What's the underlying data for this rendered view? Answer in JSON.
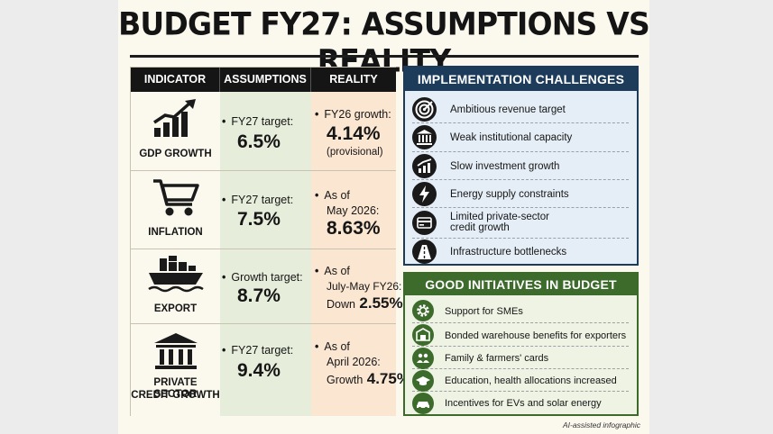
{
  "title": "BUDGET FY27: ASSUMPTIONS VS REALITY",
  "table": {
    "headers": {
      "indicator": "INDICATOR",
      "assumptions": "ASSUMPTIONS",
      "reality": "REALITY"
    },
    "rows": [
      {
        "icon": "growth-chart-icon",
        "label": "GDP GROWTH",
        "assumption_text": "FY27 target:",
        "assumption_value": "6.5%",
        "reality_text": "FY26 growth:",
        "reality_value": "4.14%",
        "reality_note": "(provisional)"
      },
      {
        "icon": "shopping-cart-icon",
        "label": "INFLATION",
        "assumption_text": "FY27 target:",
        "assumption_value": "7.5%",
        "reality_text_1": "As of",
        "reality_text_2": "May 2026:",
        "reality_value": "8.63%"
      },
      {
        "icon": "cargo-ship-icon",
        "label": "EXPORT",
        "assumption_text": "Growth target:",
        "assumption_value": "8.7%",
        "reality_text_1": "As of",
        "reality_text_2": "July-May FY26:",
        "reality_prefix": "Down",
        "reality_value": "2.55%"
      },
      {
        "icon": "bank-building-icon",
        "label_1": "PRIVATE SECTOR",
        "label_2": "CREDIT GROWTH",
        "assumption_text": "FY27 target:",
        "assumption_value": "9.4%",
        "reality_text_1": "As of",
        "reality_text_2": "April 2026:",
        "reality_prefix": "Growth",
        "reality_value": "4.75%"
      }
    ]
  },
  "challenges": {
    "heading": "IMPLEMENTATION CHALLENGES",
    "items": [
      {
        "icon": "target-icon",
        "label": "Ambitious revenue target"
      },
      {
        "icon": "institution-icon",
        "label": "Weak institutional capacity"
      },
      {
        "icon": "low-growth-chart-icon",
        "label": "Slow investment growth"
      },
      {
        "icon": "lightning-icon",
        "label": "Energy supply constraints"
      },
      {
        "icon": "credit-card-icon",
        "label_1": "Limited private-sector",
        "label_2": "credit growth"
      },
      {
        "icon": "road-icon",
        "label": "Infrastructure bottlenecks"
      }
    ]
  },
  "initiatives": {
    "heading": "GOOD INITIATIVES IN BUDGET",
    "items": [
      {
        "icon": "gear-icon",
        "label": "Support for SMEs"
      },
      {
        "icon": "warehouse-icon",
        "label": "Bonded warehouse benefits for exporters"
      },
      {
        "icon": "family-icon",
        "label": "Family & farmers' cards"
      },
      {
        "icon": "graduation-cap-icon",
        "label": "Education, health allocations increased"
      },
      {
        "icon": "electric-car-icon",
        "label": "Incentives for EVs and solar energy"
      }
    ]
  },
  "footnote": "AI-assisted infographic",
  "colors": {
    "dark": "#151515",
    "assumption_bg": "#e6eedb",
    "reality_bg": "#fbe6d2",
    "challenge_blue": "#1d3c5c",
    "initiative_green": "#3d6b2b"
  }
}
